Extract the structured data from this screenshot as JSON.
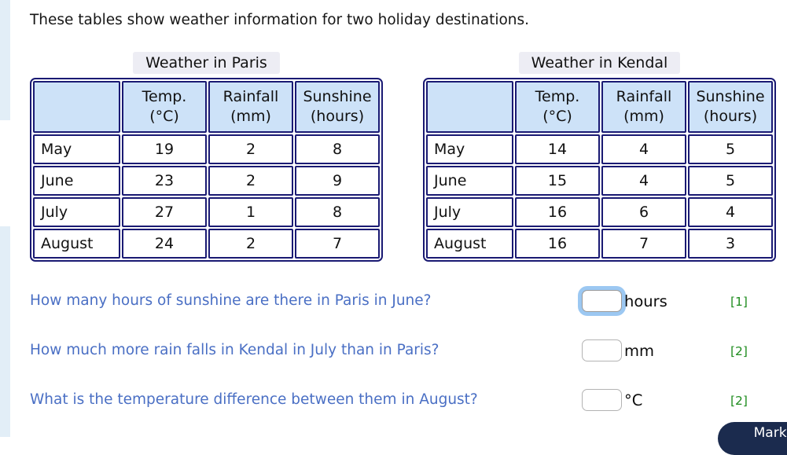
{
  "intro": "These tables show weather information for two holiday destinations.",
  "tables": [
    {
      "title": "Weather in Paris",
      "columns": [
        "Temp.\n(°C)",
        "Rainfall\n(mm)",
        "Sunshine\n(hours)"
      ],
      "rows": [
        [
          "May",
          "19",
          "2",
          "8"
        ],
        [
          "June",
          "23",
          "2",
          "9"
        ],
        [
          "July",
          "27",
          "1",
          "8"
        ],
        [
          "August",
          "24",
          "2",
          "7"
        ]
      ]
    },
    {
      "title": "Weather in Kendal",
      "columns": [
        "Temp.\n(°C)",
        "Rainfall\n(mm)",
        "Sunshine\n(hours)"
      ],
      "rows": [
        [
          "May",
          "14",
          "4",
          "5"
        ],
        [
          "June",
          "15",
          "4",
          "5"
        ],
        [
          "July",
          "16",
          "6",
          "4"
        ],
        [
          "August",
          "16",
          "7",
          "3"
        ]
      ]
    }
  ],
  "questions": [
    {
      "text": "How many hours of sunshine are there in Paris in June?",
      "unit": "hours",
      "marks": "[1]",
      "value": ""
    },
    {
      "text": "How much more rain falls in Kendal in July than in Paris?",
      "unit": "mm",
      "marks": "[2]",
      "value": ""
    },
    {
      "text": "What is the temperature difference between them in August?",
      "unit": "°C",
      "marks": "[2]",
      "value": ""
    }
  ],
  "button": {
    "label": "Mark it"
  },
  "colors": {
    "table_border": "#1a1a73",
    "header_bg": "#cde2f8",
    "title_bg": "#ededf4",
    "question_text": "#4a6fc4",
    "marks_green": "#1f8c1f",
    "accent_strip": "#e2eef7",
    "focus_ring": "#9cc8f2",
    "button_bg": "#1b2b4e"
  }
}
